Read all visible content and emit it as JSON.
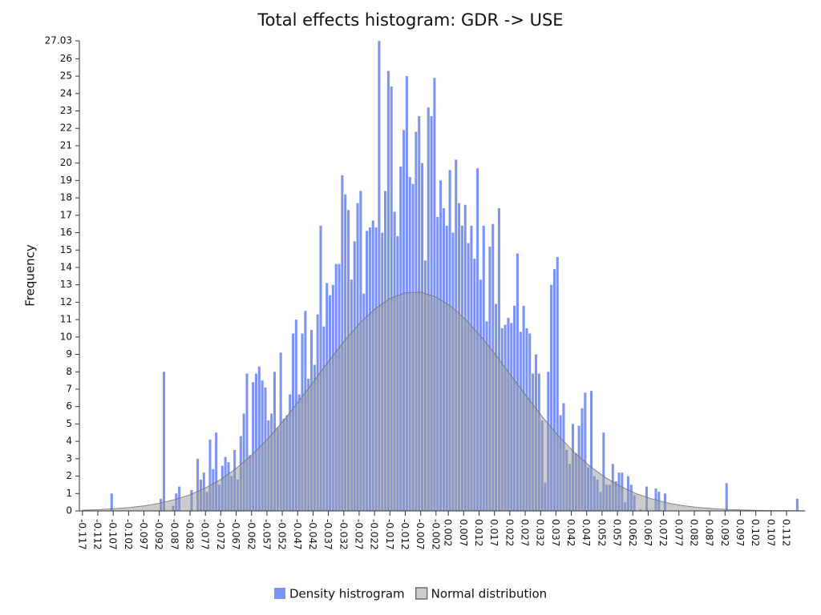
{
  "chart_data": {
    "type": "histogram",
    "title": "Total effects histogram: GDR -> USE",
    "y_label": "Frequency",
    "xlim": [
      -0.118,
      0.118
    ],
    "ylim": [
      0,
      27.03
    ],
    "yticks": [
      0,
      1,
      2,
      3,
      4,
      5,
      6,
      7,
      8,
      9,
      10,
      11,
      12,
      13,
      14,
      15,
      16,
      17,
      18,
      19,
      20,
      21,
      22,
      23,
      24,
      25,
      26,
      27.03
    ],
    "xticks": [
      -0.117,
      -0.112,
      -0.107,
      -0.102,
      -0.097,
      -0.092,
      -0.087,
      -0.082,
      -0.077,
      -0.072,
      -0.067,
      -0.062,
      -0.057,
      -0.052,
      -0.047,
      -0.042,
      -0.037,
      -0.032,
      -0.027,
      -0.022,
      -0.017,
      -0.012,
      -0.007,
      -0.002,
      0.002,
      0.007,
      0.012,
      0.017,
      0.022,
      0.027,
      0.032,
      0.037,
      0.042,
      0.047,
      0.052,
      0.057,
      0.062,
      0.067,
      0.072,
      0.077,
      0.082,
      0.087,
      0.092,
      0.097,
      0.102,
      0.107,
      0.112
    ],
    "legend": "bottom",
    "series": [
      {
        "name": "Density histrogram",
        "type": "histogram",
        "color": "#7b93f2",
        "bins": [
          -0.117,
          -0.116,
          -0.115,
          -0.114,
          -0.113,
          -0.112,
          -0.111,
          -0.11,
          -0.109,
          -0.108,
          -0.107,
          -0.106,
          -0.105,
          -0.104,
          -0.103,
          -0.102,
          -0.101,
          -0.1,
          -0.099,
          -0.098,
          -0.097,
          -0.096,
          -0.095,
          -0.094,
          -0.093,
          -0.092,
          -0.091,
          -0.09,
          -0.089,
          -0.088,
          -0.087,
          -0.086,
          -0.085,
          -0.084,
          -0.083,
          -0.082,
          -0.081,
          -0.08,
          -0.079,
          -0.078,
          -0.077,
          -0.076,
          -0.075,
          -0.074,
          -0.073,
          -0.072,
          -0.071,
          -0.07,
          -0.069,
          -0.068,
          -0.067,
          -0.066,
          -0.065,
          -0.064,
          -0.063,
          -0.062,
          -0.061,
          -0.06,
          -0.059,
          -0.058,
          -0.057,
          -0.056,
          -0.055,
          -0.054,
          -0.053,
          -0.052,
          -0.051,
          -0.05,
          -0.049,
          -0.048,
          -0.047,
          -0.046,
          -0.045,
          -0.044,
          -0.043,
          -0.042,
          -0.041,
          -0.04,
          -0.039,
          -0.038,
          -0.037,
          -0.036,
          -0.035,
          -0.034,
          -0.033,
          -0.032,
          -0.031,
          -0.03,
          -0.029,
          -0.028,
          -0.027,
          -0.026,
          -0.025,
          -0.024,
          -0.023,
          -0.022,
          -0.021,
          -0.02,
          -0.019,
          -0.018,
          -0.017,
          -0.016,
          -0.015,
          -0.014,
          -0.013,
          -0.012,
          -0.011,
          -0.01,
          -0.009,
          -0.008,
          -0.007,
          -0.006,
          -0.005,
          -0.004,
          -0.003,
          -0.002,
          -0.001,
          0,
          0.001,
          0.002,
          0.003,
          0.004,
          0.005,
          0.006,
          0.007,
          0.008,
          0.009,
          0.01,
          0.011,
          0.012,
          0.013,
          0.014,
          0.015,
          0.016,
          0.017,
          0.018,
          0.019,
          0.02,
          0.021,
          0.022,
          0.023,
          0.024,
          0.025,
          0.026,
          0.027,
          0.028,
          0.029,
          0.03,
          0.031,
          0.032,
          0.033,
          0.034,
          0.035,
          0.036,
          0.037,
          0.038,
          0.039,
          0.04,
          0.041,
          0.042,
          0.043,
          0.044,
          0.045,
          0.046,
          0.047,
          0.048,
          0.049,
          0.05,
          0.051,
          0.052,
          0.053,
          0.054,
          0.055,
          0.056,
          0.057,
          0.058,
          0.059,
          0.06,
          0.061,
          0.062,
          0.063,
          0.064,
          0.065,
          0.066,
          0.067,
          0.068,
          0.069,
          0.07,
          0.071,
          0.072,
          0.073,
          0.074,
          0.075,
          0.076,
          0.077,
          0.078,
          0.079,
          0.08,
          0.081,
          0.082,
          0.083,
          0.084,
          0.085,
          0.086,
          0.087,
          0.088,
          0.089,
          0.09,
          0.091,
          0.092,
          0.093,
          0.094,
          0.095,
          0.096,
          0.097,
          0.098,
          0.099,
          0.1,
          0.101,
          0.102,
          0.103,
          0.104,
          0.105,
          0.106,
          0.107,
          0.108,
          0.109,
          0.11,
          0.111,
          0.112,
          0.113,
          0.114,
          0.115,
          0.116,
          0.117,
          0.118
        ],
        "values": [
          0,
          0,
          0,
          0,
          0,
          0,
          0,
          0,
          0,
          1,
          0,
          0,
          0,
          0,
          0,
          0,
          0,
          0,
          0,
          0,
          0,
          0,
          0,
          0,
          0,
          0.7,
          8,
          0,
          0,
          0.3,
          1,
          1.4,
          0,
          0,
          0,
          1.2,
          0,
          3,
          1.8,
          2.2,
          1.1,
          4.1,
          2.4,
          4.5,
          1.5,
          2.6,
          3.1,
          2.8,
          2,
          3.5,
          1.8,
          4.3,
          5.6,
          7.9,
          3.2,
          7.4,
          7.9,
          8.3,
          7.5,
          7.1,
          5.2,
          5.6,
          8,
          4.8,
          9.1,
          5.3,
          5.5,
          6.7,
          10.2,
          11,
          6.7,
          10.2,
          11.5,
          7.6,
          10.4,
          8.4,
          11.3,
          16.4,
          10.6,
          13.1,
          12.4,
          13,
          14.2,
          14.2,
          19.3,
          18.2,
          17.3,
          13.3,
          15.5,
          17.7,
          18.4,
          12.5,
          16.1,
          16.3,
          16.7,
          16.3,
          27.03,
          16,
          18.4,
          25.3,
          24.4,
          17.2,
          15.8,
          19.8,
          21.9,
          25,
          19.2,
          18.8,
          21.8,
          22.7,
          20,
          14.4,
          23.2,
          22.7,
          24.9,
          16.9,
          19,
          17.4,
          16.4,
          19.6,
          16,
          20.2,
          17.7,
          16.4,
          17.6,
          15.4,
          16.4,
          14.5,
          19.7,
          13.3,
          16.4,
          10.9,
          15.2,
          16.5,
          11.9,
          17.4,
          10.5,
          10.7,
          11.1,
          10.8,
          11.8,
          14.8,
          10.3,
          11.8,
          10.5,
          10.2,
          7.9,
          9,
          7.9,
          5.2,
          1.6,
          8,
          13,
          13.9,
          14.6,
          5.5,
          6.2,
          3.5,
          2.7,
          5,
          3.3,
          4.9,
          5.9,
          6.8,
          2.5,
          6.9,
          2,
          1.8,
          1.1,
          4.5,
          1.5,
          1.5,
          2.7,
          1.7,
          2.2,
          2.2,
          0.5,
          2,
          1.5,
          0.9,
          0,
          0.1,
          0,
          1.4,
          0,
          0,
          1.3,
          1.1,
          0,
          1,
          0,
          0,
          0,
          0,
          0,
          0,
          0,
          0,
          0,
          0,
          0,
          0,
          0,
          0,
          0,
          0,
          0,
          0,
          0,
          1.6,
          0,
          0,
          0,
          0,
          0,
          0,
          0,
          0,
          0,
          0,
          0,
          0,
          0,
          0,
          0,
          0,
          0,
          0,
          0,
          0,
          0,
          0,
          0.7,
          0,
          0
        ]
      },
      {
        "name": "Normal distribution",
        "type": "area",
        "color": "#9a9a9a",
        "x": [
          -0.117,
          -0.112,
          -0.107,
          -0.102,
          -0.097,
          -0.092,
          -0.087,
          -0.082,
          -0.077,
          -0.072,
          -0.067,
          -0.062,
          -0.057,
          -0.052,
          -0.047,
          -0.042,
          -0.037,
          -0.032,
          -0.027,
          -0.022,
          -0.017,
          -0.012,
          -0.007,
          -0.002,
          0.003,
          0.008,
          0.013,
          0.018,
          0.023,
          0.028,
          0.033,
          0.038,
          0.043,
          0.048,
          0.053,
          0.058,
          0.063,
          0.068,
          0.073,
          0.078,
          0.083,
          0.088,
          0.093,
          0.098,
          0.103,
          0.108,
          0.113,
          0.118
        ],
        "values": [
          0.04,
          0.07,
          0.12,
          0.19,
          0.29,
          0.44,
          0.65,
          0.93,
          1.32,
          1.81,
          2.44,
          3.2,
          4.09,
          5.11,
          6.22,
          7.4,
          8.59,
          9.73,
          10.76,
          11.6,
          12.21,
          12.54,
          12.58,
          12.3,
          11.74,
          10.94,
          9.95,
          8.83,
          7.64,
          6.46,
          5.32,
          4.28,
          3.37,
          2.58,
          1.93,
          1.41,
          1,
          0.7,
          0.47,
          0.31,
          0.2,
          0.13,
          0.08,
          0.05,
          0.03,
          0.02,
          0.01,
          0.005
        ]
      }
    ]
  }
}
